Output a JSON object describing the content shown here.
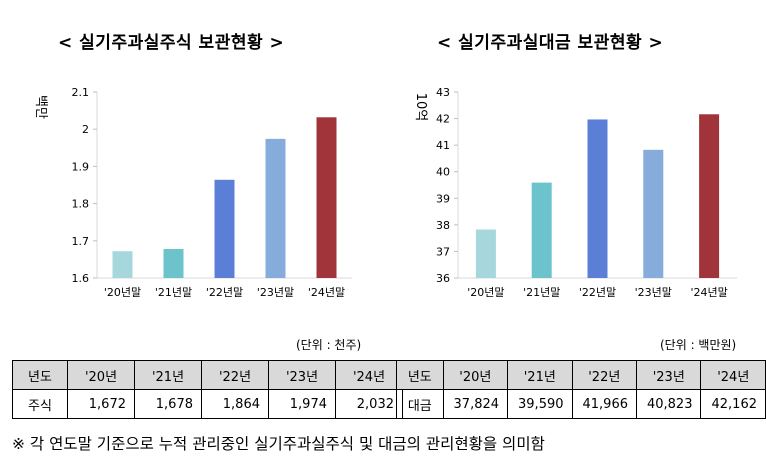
{
  "chart_data": [
    {
      "type": "bar",
      "title": "< 실기주과실주식 보관현황 >",
      "ylabel": "백만",
      "categories": [
        "'20년말",
        "'21년말",
        "'22년말",
        "'23년말",
        "'24년말"
      ],
      "values": [
        1.672,
        1.678,
        1.864,
        1.974,
        2.032
      ],
      "ylim": [
        1.6,
        2.1
      ],
      "yticks": [
        "1.6",
        "1.7",
        "1.8",
        "1.9",
        "2",
        "2.1"
      ],
      "colors": [
        "#a6d7dd",
        "#6dc3cc",
        "#5b7fd6",
        "#86acdc",
        "#a1343a"
      ],
      "grid": false
    },
    {
      "type": "bar",
      "title": "< 실기주과실대금 보관현황 >",
      "ylabel": "10억",
      "categories": [
        "'20년말",
        "'21년말",
        "'22년말",
        "'23년말",
        "'24년말"
      ],
      "values": [
        37.824,
        39.59,
        41.966,
        40.823,
        42.162
      ],
      "ylim": [
        36,
        43
      ],
      "yticks": [
        "36",
        "37",
        "38",
        "39",
        "40",
        "41",
        "42",
        "43"
      ],
      "colors": [
        "#a6d7dd",
        "#6dc3cc",
        "#5b7fd6",
        "#86acdc",
        "#a1343a"
      ],
      "grid": false
    }
  ],
  "tables": [
    {
      "unit": "(단위 : 천주)",
      "header": [
        "년도",
        "'20년",
        "'21년",
        "'22년",
        "'23년",
        "'24년"
      ],
      "row": [
        "주식",
        "1,672",
        "1,678",
        "1,864",
        "1,974",
        "2,032"
      ]
    },
    {
      "unit": "(단위 : 백만원)",
      "header": [
        "년도",
        "'20년",
        "'21년",
        "'22년",
        "'23년",
        "'24년"
      ],
      "row": [
        "대금",
        "37,824",
        "39,590",
        "41,966",
        "40,823",
        "42,162"
      ]
    }
  ],
  "footnote": "※ 각 연도말 기준으로 누적 관리중인 실기주과실주식 및 대금의 관리현황을 의미함"
}
